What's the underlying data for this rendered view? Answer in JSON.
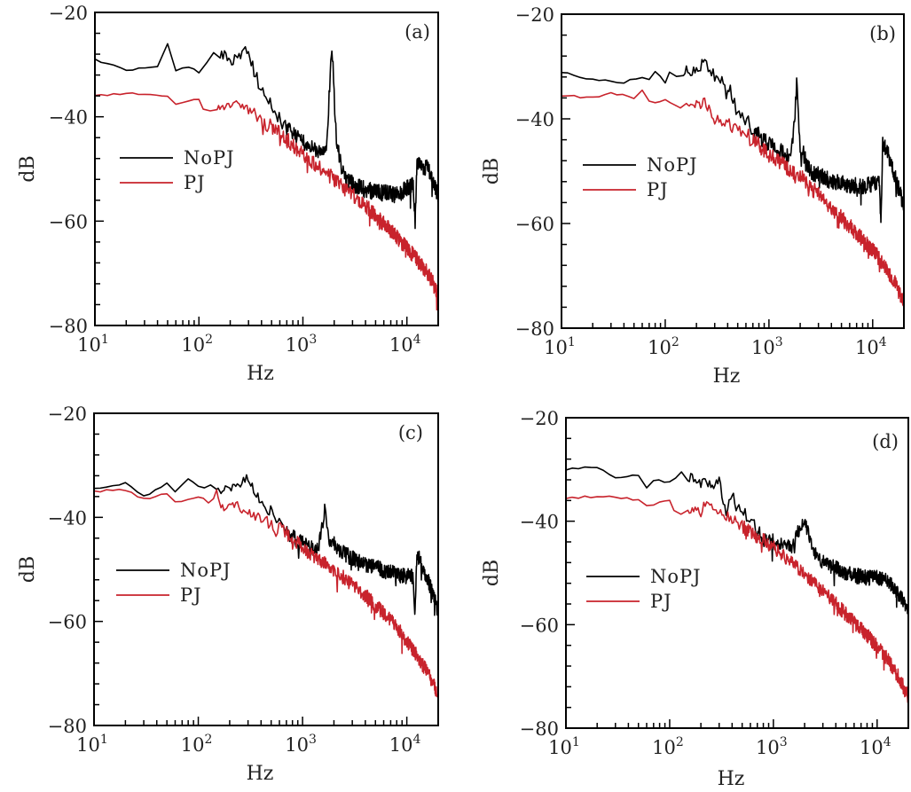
{
  "chart_data": [
    {
      "type": "line",
      "panel": "(a)",
      "xlabel": "Hz",
      "ylabel": "dB",
      "xscale": "log",
      "xlim": [
        10,
        20000
      ],
      "ylim": [
        -80,
        -20
      ],
      "xticks": [
        10,
        100,
        1000,
        10000
      ],
      "xtick_labels": [
        "10",
        "10",
        "10",
        "10"
      ],
      "xtick_exponents": [
        "1",
        "2",
        "3",
        "4"
      ],
      "yticks": [
        -20,
        -40,
        -60,
        -80
      ],
      "ytick_labels": [
        "−20",
        "−40",
        "−60",
        "−80"
      ],
      "legend": {
        "position": "center-left",
        "entries": [
          "NoPJ",
          "PJ"
        ]
      },
      "series": [
        {
          "name": "NoPJ",
          "color": "#000000",
          "noise": 1.6,
          "points": [
            [
              10,
              -29
            ],
            [
              20,
              -31
            ],
            [
              40,
              -30.5
            ],
            [
              50,
              -26
            ],
            [
              60,
              -31
            ],
            [
              80,
              -30.5
            ],
            [
              100,
              -31.5
            ],
            [
              120,
              -29.5
            ],
            [
              160,
              -28
            ],
            [
              200,
              -29
            ],
            [
              260,
              -28.5
            ],
            [
              290,
              -27
            ],
            [
              350,
              -32
            ],
            [
              500,
              -38
            ],
            [
              700,
              -42
            ],
            [
              1000,
              -45
            ],
            [
              1400,
              -47
            ],
            [
              1700,
              -45
            ],
            [
              1900,
              -26
            ],
            [
              2100,
              -45
            ],
            [
              2500,
              -52
            ],
            [
              4000,
              -54
            ],
            [
              8000,
              -55
            ],
            [
              11500,
              -53
            ],
            [
              12000,
              -60
            ],
            [
              12500,
              -49
            ],
            [
              16000,
              -50
            ],
            [
              20000,
              -55
            ]
          ]
        },
        {
          "name": "PJ",
          "color": "#c8232c",
          "noise": 1.5,
          "points": [
            [
              10,
              -36
            ],
            [
              20,
              -35.5
            ],
            [
              30,
              -35.8
            ],
            [
              50,
              -36
            ],
            [
              60,
              -37.5
            ],
            [
              80,
              -37
            ],
            [
              100,
              -36.5
            ],
            [
              110,
              -38.5
            ],
            [
              150,
              -38.2
            ],
            [
              180,
              -39
            ],
            [
              200,
              -37.5
            ],
            [
              300,
              -38.5
            ],
            [
              500,
              -42
            ],
            [
              1000,
              -47
            ],
            [
              2000,
              -52
            ],
            [
              4000,
              -57
            ],
            [
              8000,
              -63
            ],
            [
              12000,
              -67
            ],
            [
              16000,
              -70
            ],
            [
              20000,
              -74
            ]
          ]
        }
      ]
    },
    {
      "type": "line",
      "panel": "(b)",
      "xlabel": "Hz",
      "ylabel": "dB",
      "xscale": "log",
      "xlim": [
        10,
        20000
      ],
      "ylim": [
        -80,
        -20
      ],
      "xticks": [
        10,
        100,
        1000,
        10000
      ],
      "xtick_labels": [
        "10",
        "10",
        "10",
        "10"
      ],
      "xtick_exponents": [
        "1",
        "2",
        "3",
        "4"
      ],
      "yticks": [
        -20,
        -40,
        -60,
        -80
      ],
      "ytick_labels": [
        "−20",
        "−40",
        "−60",
        "−80"
      ],
      "legend": {
        "position": "center-left",
        "entries": [
          "NoPJ",
          "PJ"
        ]
      },
      "series": [
        {
          "name": "NoPJ",
          "color": "#000000",
          "noise": 1.6,
          "points": [
            [
              10,
              -31
            ],
            [
              20,
              -32.5
            ],
            [
              40,
              -33
            ],
            [
              60,
              -32
            ],
            [
              70,
              -32.5
            ],
            [
              80,
              -31
            ],
            [
              100,
              -33
            ],
            [
              110,
              -31
            ],
            [
              150,
              -31
            ],
            [
              200,
              -30.5
            ],
            [
              240,
              -29
            ],
            [
              260,
              -30
            ],
            [
              300,
              -32
            ],
            [
              400,
              -33
            ],
            [
              450,
              -37
            ],
            [
              700,
              -42
            ],
            [
              1000,
              -45
            ],
            [
              1500,
              -47
            ],
            [
              1700,
              -45
            ],
            [
              1850,
              -33.5
            ],
            [
              2000,
              -45
            ],
            [
              2500,
              -50
            ],
            [
              4000,
              -52
            ],
            [
              8000,
              -53
            ],
            [
              11500,
              -52
            ],
            [
              12000,
              -60
            ],
            [
              12500,
              -44
            ],
            [
              16000,
              -50
            ],
            [
              20000,
              -57
            ]
          ]
        },
        {
          "name": "PJ",
          "color": "#c8232c",
          "noise": 1.5,
          "points": [
            [
              10,
              -35.5
            ],
            [
              20,
              -36
            ],
            [
              30,
              -35
            ],
            [
              50,
              -36
            ],
            [
              60,
              -34.5
            ],
            [
              70,
              -36.5
            ],
            [
              80,
              -37
            ],
            [
              100,
              -36.5
            ],
            [
              140,
              -37.5
            ],
            [
              160,
              -36.5
            ],
            [
              200,
              -37.5
            ],
            [
              240,
              -37
            ],
            [
              300,
              -40
            ],
            [
              400,
              -41
            ],
            [
              700,
              -44
            ],
            [
              1000,
              -47
            ],
            [
              2000,
              -51
            ],
            [
              4000,
              -57
            ],
            [
              8000,
              -63
            ],
            [
              12000,
              -67
            ],
            [
              16000,
              -71
            ],
            [
              20000,
              -75
            ]
          ]
        }
      ]
    },
    {
      "type": "line",
      "panel": "(c)",
      "xlabel": "Hz",
      "ylabel": "dB",
      "xscale": "log",
      "xlim": [
        10,
        20000
      ],
      "ylim": [
        -80,
        -20
      ],
      "xticks": [
        10,
        100,
        1000,
        10000
      ],
      "xtick_labels": [
        "10",
        "10",
        "10",
        "10"
      ],
      "xtick_exponents": [
        "1",
        "2",
        "3",
        "4"
      ],
      "yticks": [
        -20,
        -40,
        -60,
        -80
      ],
      "ytick_labels": [
        "−20",
        "−40",
        "−60",
        "−80"
      ],
      "legend": {
        "position": "center-left",
        "entries": [
          "NoPJ",
          "PJ"
        ]
      },
      "series": [
        {
          "name": "NoPJ",
          "color": "#000000",
          "noise": 1.5,
          "points": [
            [
              10,
              -34.5
            ],
            [
              20,
              -33.5
            ],
            [
              30,
              -36
            ],
            [
              50,
              -33.5
            ],
            [
              60,
              -35
            ],
            [
              80,
              -32.5
            ],
            [
              100,
              -34
            ],
            [
              150,
              -35
            ],
            [
              200,
              -34
            ],
            [
              300,
              -32.5
            ],
            [
              350,
              -35
            ],
            [
              450,
              -38
            ],
            [
              700,
              -43
            ],
            [
              1000,
              -45
            ],
            [
              1400,
              -46.5
            ],
            [
              1650,
              -38
            ],
            [
              1800,
              -44
            ],
            [
              2500,
              -47
            ],
            [
              4000,
              -49
            ],
            [
              8000,
              -51
            ],
            [
              11500,
              -51.5
            ],
            [
              12000,
              -59
            ],
            [
              12500,
              -47
            ],
            [
              16000,
              -52
            ],
            [
              20000,
              -58
            ]
          ]
        },
        {
          "name": "PJ",
          "color": "#c8232c",
          "noise": 1.4,
          "points": [
            [
              10,
              -35
            ],
            [
              20,
              -34.7
            ],
            [
              30,
              -36.5
            ],
            [
              50,
              -35.5
            ],
            [
              60,
              -37
            ],
            [
              80,
              -36.5
            ],
            [
              100,
              -36
            ],
            [
              140,
              -37
            ],
            [
              150,
              -35
            ],
            [
              160,
              -38
            ],
            [
              200,
              -37.5
            ],
            [
              300,
              -38.5
            ],
            [
              400,
              -40.5
            ],
            [
              700,
              -43
            ],
            [
              1000,
              -46
            ],
            [
              2000,
              -50
            ],
            [
              4000,
              -55
            ],
            [
              8000,
              -61
            ],
            [
              12000,
              -66
            ],
            [
              16000,
              -70
            ],
            [
              20000,
              -74
            ]
          ]
        }
      ]
    },
    {
      "type": "line",
      "panel": "(d)",
      "xlabel": "Hz",
      "ylabel": "dB",
      "xscale": "log",
      "xlim": [
        10,
        20000
      ],
      "ylim": [
        -80,
        -20
      ],
      "xticks": [
        10,
        100,
        1000,
        10000
      ],
      "xtick_labels": [
        "10",
        "10",
        "10",
        "10"
      ],
      "xtick_exponents": [
        "1",
        "2",
        "3",
        "4"
      ],
      "yticks": [
        -20,
        -40,
        -60,
        -80
      ],
      "ytick_labels": [
        "−20",
        "−40",
        "−60",
        "−80"
      ],
      "legend": {
        "position": "center-left",
        "entries": [
          "NoPJ",
          "PJ"
        ]
      },
      "series": [
        {
          "name": "NoPJ",
          "color": "#000000",
          "noise": 1.5,
          "points": [
            [
              10,
              -30
            ],
            [
              20,
              -29.5
            ],
            [
              30,
              -31.5
            ],
            [
              50,
              -31
            ],
            [
              60,
              -33.5
            ],
            [
              70,
              -32
            ],
            [
              100,
              -32.5
            ],
            [
              130,
              -31
            ],
            [
              150,
              -31.5
            ],
            [
              200,
              -32.5
            ],
            [
              250,
              -33
            ],
            [
              300,
              -32.5
            ],
            [
              350,
              -38
            ],
            [
              400,
              -35
            ],
            [
              450,
              -37
            ],
            [
              700,
              -42
            ],
            [
              1000,
              -44
            ],
            [
              1500,
              -45
            ],
            [
              2000,
              -39.5
            ],
            [
              2400,
              -46
            ],
            [
              3000,
              -48
            ],
            [
              5000,
              -50
            ],
            [
              8000,
              -51
            ],
            [
              12000,
              -51
            ],
            [
              16000,
              -54
            ],
            [
              20000,
              -57
            ]
          ]
        },
        {
          "name": "PJ",
          "color": "#c8232c",
          "noise": 1.4,
          "points": [
            [
              10,
              -35.5
            ],
            [
              20,
              -35.2
            ],
            [
              30,
              -35.3
            ],
            [
              50,
              -36
            ],
            [
              60,
              -37
            ],
            [
              70,
              -37
            ],
            [
              80,
              -36.5
            ],
            [
              100,
              -36
            ],
            [
              110,
              -38
            ],
            [
              150,
              -37.5
            ],
            [
              200,
              -38.5
            ],
            [
              220,
              -36.5
            ],
            [
              300,
              -38
            ],
            [
              500,
              -41
            ],
            [
              1000,
              -45
            ],
            [
              2000,
              -50
            ],
            [
              4000,
              -56
            ],
            [
              8000,
              -62
            ],
            [
              12000,
              -66
            ],
            [
              16000,
              -70
            ],
            [
              20000,
              -74
            ]
          ]
        }
      ]
    }
  ]
}
